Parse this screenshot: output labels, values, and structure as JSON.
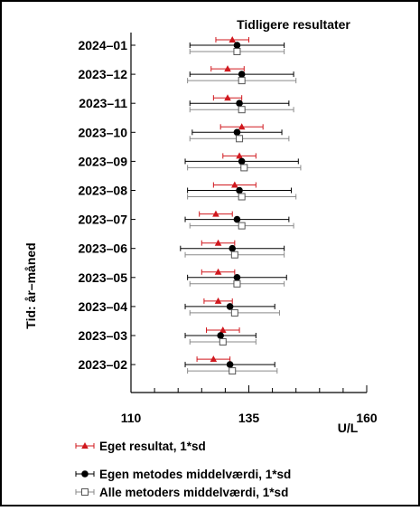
{
  "chart_data": {
    "type": "scatter",
    "title": "Tidligere resultater",
    "xlabel": "U/L",
    "ylabel": "Tid: år–måned",
    "xlim": [
      110,
      160
    ],
    "xticks": [
      "110",
      "135",
      "160"
    ],
    "categories": [
      "2024–01",
      "2023–12",
      "2023–11",
      "2023–10",
      "2023–09",
      "2023–08",
      "2023–07",
      "2023–06",
      "2023–05",
      "2023–04",
      "2023–03",
      "2023–02"
    ],
    "series": [
      {
        "name": "Eget resultat, 1*sd",
        "marker": "triangle",
        "color": "#d0181e",
        "values": [
          131.5,
          130.5,
          130.5,
          133.5,
          133.0,
          132.0,
          128.0,
          128.5,
          128.5,
          128.5,
          129.5,
          127.5
        ],
        "errors": [
          3.5,
          3.5,
          3.0,
          4.5,
          3.5,
          4.5,
          3.5,
          3.5,
          3.5,
          3.0,
          3.5,
          3.5
        ]
      },
      {
        "name": "Egen metodes middelværdi, 1*sd",
        "marker": "circle",
        "color": "#000000",
        "values": [
          132.5,
          133.5,
          133.0,
          132.5,
          133.5,
          133.0,
          132.5,
          131.5,
          132.5,
          131.0,
          129.0,
          131.0
        ],
        "errors": [
          10.0,
          11.0,
          10.5,
          9.5,
          12.0,
          11.0,
          11.0,
          11.0,
          10.5,
          9.5,
          7.5,
          9.5
        ]
      },
      {
        "name": "Alle metoders middelværdi, 1*sd",
        "marker": "square",
        "color": "#9a9a9a",
        "values": [
          132.5,
          133.5,
          133.5,
          133.0,
          134.0,
          133.5,
          133.5,
          132.0,
          132.5,
          132.0,
          129.5,
          131.5
        ],
        "errors": [
          10.0,
          11.5,
          11.0,
          10.5,
          12.0,
          11.5,
          11.0,
          10.5,
          10.0,
          9.5,
          7.0,
          9.5
        ]
      }
    ]
  }
}
